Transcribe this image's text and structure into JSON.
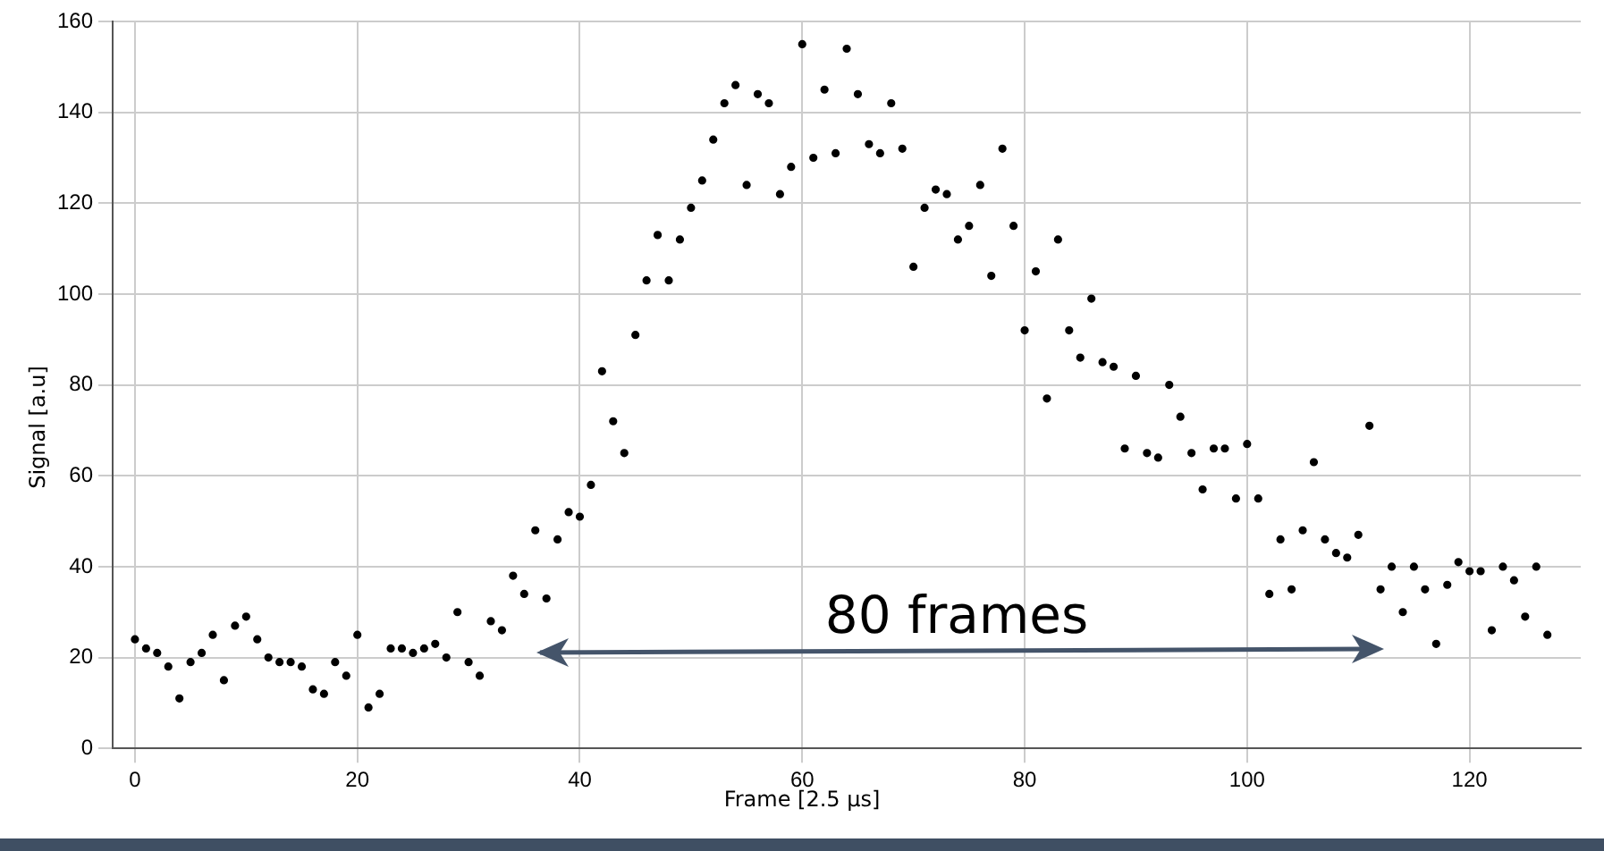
{
  "chart_data": {
    "type": "scatter",
    "xlabel": "Frame [2.5 μs]",
    "ylabel": "Signal [a.u]",
    "x": [
      0,
      1,
      2,
      3,
      4,
      5,
      6,
      7,
      8,
      9,
      10,
      11,
      12,
      13,
      14,
      15,
      16,
      17,
      18,
      19,
      20,
      21,
      22,
      23,
      24,
      25,
      26,
      27,
      28,
      29,
      30,
      31,
      32,
      33,
      34,
      35,
      36,
      37,
      38,
      39,
      40,
      41,
      42,
      43,
      44,
      45,
      46,
      47,
      48,
      49,
      50,
      51,
      52,
      53,
      54,
      55,
      56,
      57,
      58,
      59,
      60,
      61,
      62,
      63,
      64,
      65,
      66,
      67,
      68,
      69,
      70,
      71,
      72,
      73,
      74,
      75,
      76,
      77,
      78,
      79,
      80,
      81,
      82,
      83,
      84,
      85,
      86,
      87,
      88,
      89,
      90,
      91,
      92,
      93,
      94,
      95,
      96,
      97,
      98,
      99,
      100,
      101,
      102,
      103,
      104,
      105,
      106,
      107,
      108,
      109,
      110,
      111,
      112,
      113,
      114,
      115,
      116,
      117,
      118,
      119,
      120,
      121,
      122,
      123,
      124,
      125,
      126,
      127
    ],
    "values": [
      24,
      22,
      21,
      18,
      11,
      19,
      21,
      25,
      15,
      27,
      29,
      24,
      20,
      19,
      19,
      18,
      13,
      12,
      19,
      16,
      25,
      9,
      12,
      22,
      22,
      21,
      22,
      23,
      20,
      30,
      19,
      16,
      28,
      26,
      38,
      34,
      48,
      33,
      46,
      52,
      51,
      58,
      83,
      72,
      65,
      91,
      103,
      113,
      103,
      112,
      119,
      125,
      134,
      142,
      146,
      124,
      144,
      142,
      122,
      128,
      155,
      130,
      145,
      131,
      154,
      144,
      133,
      131,
      142,
      132,
      106,
      119,
      123,
      122,
      112,
      115,
      124,
      104,
      132,
      115,
      92,
      105,
      77,
      112,
      92,
      86,
      99,
      85,
      84,
      66,
      82,
      65,
      64,
      80,
      73,
      65,
      57,
      66,
      66,
      55,
      67,
      55,
      34,
      46,
      35,
      48,
      63,
      46,
      43,
      42,
      47,
      71,
      35,
      40,
      30,
      40,
      35,
      23,
      36,
      41,
      39,
      39,
      26,
      40,
      37,
      29,
      40,
      25
    ],
    "color": "#000000",
    "marker": "circle",
    "grid": true,
    "xlim": [
      -2,
      130
    ],
    "ylim": [
      0,
      160
    ],
    "xticks": [
      0,
      20,
      40,
      60,
      80,
      100,
      120
    ],
    "yticks": [
      0,
      20,
      40,
      60,
      80,
      100,
      120,
      140,
      160
    ],
    "annotations": [
      "80 frames"
    ]
  }
}
